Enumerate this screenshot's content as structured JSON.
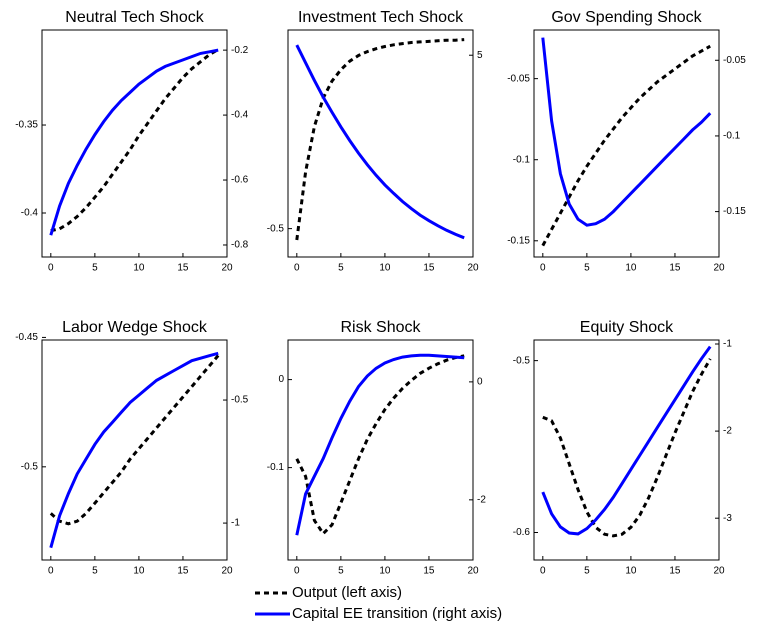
{
  "chart_data": [
    {
      "type": "line",
      "title": "Neutral Tech Shock",
      "x": [
        0,
        1,
        2,
        3,
        4,
        5,
        6,
        7,
        8,
        9,
        10,
        11,
        12,
        13,
        14,
        15,
        16,
        17,
        18,
        19
      ],
      "xlim": [
        -1,
        20
      ],
      "xticks": [
        0,
        5,
        10,
        15,
        20
      ],
      "ylim": [
        -0.425,
        -0.296
      ],
      "yticks": [
        -0.4,
        -0.35
      ],
      "y2lim": [
        -0.837,
        -0.138
      ],
      "y2ticks": [
        -0.8,
        -0.6,
        -0.4,
        -0.2
      ],
      "series": [
        {
          "name": "Output (left axis)",
          "color": "#000000",
          "style": "dashed",
          "values": [
            -0.41,
            -0.409,
            -0.406,
            -0.402,
            -0.397,
            -0.391,
            -0.385,
            -0.378,
            -0.371,
            -0.364,
            -0.356,
            -0.349,
            -0.342,
            -0.335,
            -0.329,
            -0.323,
            -0.318,
            -0.314,
            -0.31,
            -0.307
          ]
        },
        {
          "name": "Capital EE transition (right axis)",
          "color": "#0000ff",
          "style": "solid",
          "axis": "y2",
          "values": [
            -0.77,
            -0.68,
            -0.61,
            -0.555,
            -0.505,
            -0.46,
            -0.42,
            -0.385,
            -0.355,
            -0.33,
            -0.305,
            -0.285,
            -0.265,
            -0.25,
            -0.24,
            -0.23,
            -0.22,
            -0.21,
            -0.205,
            -0.2
          ]
        }
      ]
    },
    {
      "type": "line",
      "title": "Investment Tech Shock",
      "x": [
        0,
        1,
        2,
        3,
        4,
        5,
        6,
        7,
        8,
        9,
        10,
        11,
        12,
        13,
        14,
        15,
        16,
        17,
        18,
        19
      ],
      "xlim": [
        -1,
        20
      ],
      "xticks": [
        0,
        5,
        10,
        15,
        20
      ],
      "ylim": [
        -0.55,
        -0.15
      ],
      "yticks": [
        -0.5
      ],
      "y2lim": [
        1,
        5.5
      ],
      "y2ticks": [
        5
      ],
      "series": [
        {
          "name": "Output (left axis)",
          "color": "#000000",
          "style": "dashed",
          "values": [
            -0.52,
            -0.4,
            -0.32,
            -0.27,
            -0.24,
            -0.22,
            -0.205,
            -0.195,
            -0.188,
            -0.183,
            -0.179,
            -0.176,
            -0.174,
            -0.172,
            -0.171,
            -0.17,
            -0.169,
            -0.168,
            -0.168,
            -0.167
          ]
        },
        {
          "name": "Capital EE transition (right axis)",
          "color": "#0000ff",
          "style": "solid",
          "axis": "y2",
          "values": [
            5.2,
            4.85,
            4.5,
            4.17,
            3.87,
            3.58,
            3.31,
            3.06,
            2.83,
            2.62,
            2.43,
            2.26,
            2.1,
            1.96,
            1.83,
            1.72,
            1.62,
            1.53,
            1.45,
            1.38
          ]
        }
      ]
    },
    {
      "type": "line",
      "title": "Gov Spending Shock",
      "x": [
        0,
        1,
        2,
        3,
        4,
        5,
        6,
        7,
        8,
        9,
        10,
        11,
        12,
        13,
        14,
        15,
        16,
        17,
        18,
        19
      ],
      "xlim": [
        -1,
        20
      ],
      "xticks": [
        0,
        5,
        10,
        15,
        20
      ],
      "ylim": [
        -0.16,
        -0.02
      ],
      "yticks": [
        -0.15,
        -0.1,
        -0.05
      ],
      "y2lim": [
        -0.18,
        -0.03
      ],
      "y2ticks": [
        -0.15,
        -0.1,
        -0.05
      ],
      "series": [
        {
          "name": "Output (left axis)",
          "color": "#000000",
          "style": "dashed",
          "values": [
            -0.153,
            -0.143,
            -0.133,
            -0.123,
            -0.113,
            -0.104,
            -0.096,
            -0.088,
            -0.081,
            -0.074,
            -0.068,
            -0.062,
            -0.057,
            -0.052,
            -0.048,
            -0.044,
            -0.04,
            -0.036,
            -0.033,
            -0.03
          ]
        },
        {
          "name": "Capital EE transition (right axis)",
          "color": "#0000ff",
          "style": "solid",
          "axis": "y2",
          "values": [
            -0.035,
            -0.09,
            -0.125,
            -0.145,
            -0.155,
            -0.159,
            -0.158,
            -0.155,
            -0.15,
            -0.144,
            -0.138,
            -0.132,
            -0.126,
            -0.12,
            -0.114,
            -0.108,
            -0.102,
            -0.096,
            -0.091,
            -0.085
          ]
        }
      ]
    },
    {
      "type": "line",
      "title": "Labor Wedge Shock",
      "x": [
        0,
        1,
        2,
        3,
        4,
        5,
        6,
        7,
        8,
        9,
        10,
        11,
        12,
        13,
        14,
        15,
        16,
        17,
        18,
        19
      ],
      "xlim": [
        -1,
        20
      ],
      "xticks": [
        0,
        5,
        10,
        15,
        20
      ],
      "ylim": [
        -0.536,
        -0.451
      ],
      "yticks": [
        -0.5,
        -0.45
      ],
      "y2lim": [
        -1.15,
        -0.256
      ],
      "y2ticks": [
        -1,
        -0.5
      ],
      "series": [
        {
          "name": "Output (left axis)",
          "color": "#000000",
          "style": "dashed",
          "values": [
            -0.518,
            -0.521,
            -0.522,
            -0.521,
            -0.518,
            -0.514,
            -0.51,
            -0.506,
            -0.502,
            -0.497,
            -0.493,
            -0.489,
            -0.485,
            -0.481,
            -0.477,
            -0.473,
            -0.469,
            -0.465,
            -0.461,
            -0.457
          ]
        },
        {
          "name": "Capital EE transition (right axis)",
          "color": "#0000ff",
          "style": "solid",
          "axis": "y2",
          "values": [
            -1.1,
            -0.97,
            -0.88,
            -0.8,
            -0.74,
            -0.68,
            -0.63,
            -0.59,
            -0.55,
            -0.51,
            -0.48,
            -0.45,
            -0.42,
            -0.4,
            -0.38,
            -0.36,
            -0.34,
            -0.33,
            -0.32,
            -0.31
          ]
        }
      ]
    },
    {
      "type": "line",
      "title": "Risk Shock",
      "x": [
        0,
        1,
        2,
        3,
        4,
        5,
        6,
        7,
        8,
        9,
        10,
        11,
        12,
        13,
        14,
        15,
        16,
        17,
        18,
        19
      ],
      "xlim": [
        -1,
        20
      ],
      "xticks": [
        0,
        5,
        10,
        15,
        20
      ],
      "ylim": [
        -0.205,
        0.045
      ],
      "yticks": [
        -0.1,
        0
      ],
      "y2lim": [
        -3.02,
        0.71
      ],
      "y2ticks": [
        -2,
        0
      ],
      "series": [
        {
          "name": "Output (left axis)",
          "color": "#000000",
          "style": "dashed",
          "values": [
            -0.09,
            -0.11,
            -0.16,
            -0.175,
            -0.165,
            -0.14,
            -0.115,
            -0.09,
            -0.068,
            -0.05,
            -0.034,
            -0.021,
            -0.01,
            -0.001,
            0.007,
            0.013,
            0.018,
            0.022,
            0.025,
            0.027
          ]
        },
        {
          "name": "Capital EE transition (right axis)",
          "color": "#0000ff",
          "style": "solid",
          "axis": "y2",
          "values": [
            -2.6,
            -1.9,
            -1.6,
            -1.3,
            -0.95,
            -0.62,
            -0.33,
            -0.08,
            0.1,
            0.23,
            0.32,
            0.38,
            0.42,
            0.44,
            0.45,
            0.45,
            0.44,
            0.43,
            0.42,
            0.41
          ]
        }
      ]
    },
    {
      "type": "line",
      "title": "Equity Shock",
      "x": [
        0,
        1,
        2,
        3,
        4,
        5,
        6,
        7,
        8,
        9,
        10,
        11,
        12,
        13,
        14,
        15,
        16,
        17,
        18,
        19
      ],
      "xlim": [
        -1,
        20
      ],
      "xticks": [
        0,
        5,
        10,
        15,
        20
      ],
      "ylim": [
        -0.616,
        -0.488
      ],
      "yticks": [
        -0.6,
        -0.5
      ],
      "y2lim": [
        -3.48,
        -0.954
      ],
      "y2ticks": [
        -3,
        -2,
        -1
      ],
      "series": [
        {
          "name": "Output (left axis)",
          "color": "#000000",
          "style": "dashed",
          "values": [
            -0.533,
            -0.535,
            -0.545,
            -0.56,
            -0.575,
            -0.588,
            -0.597,
            -0.601,
            -0.602,
            -0.601,
            -0.597,
            -0.59,
            -0.58,
            -0.568,
            -0.555,
            -0.542,
            -0.53,
            -0.518,
            -0.508,
            -0.499
          ]
        },
        {
          "name": "Capital EE transition (right axis)",
          "color": "#0000ff",
          "style": "solid",
          "axis": "y2",
          "values": [
            -2.7,
            -2.95,
            -3.1,
            -3.17,
            -3.18,
            -3.12,
            -3.02,
            -2.9,
            -2.76,
            -2.6,
            -2.44,
            -2.28,
            -2.12,
            -1.96,
            -1.8,
            -1.64,
            -1.48,
            -1.32,
            -1.17,
            -1.03
          ]
        }
      ]
    }
  ]
}
